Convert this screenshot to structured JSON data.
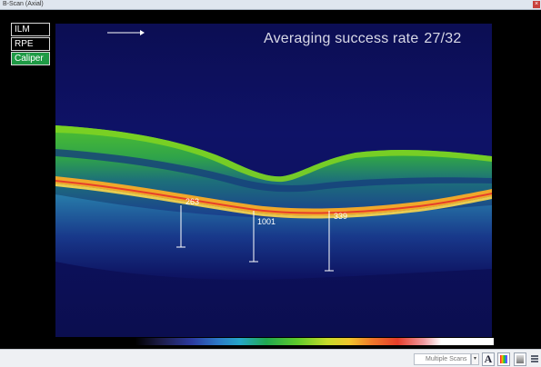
{
  "window": {
    "title": "B-Scan (Axial)"
  },
  "layers": [
    {
      "label": "ILM",
      "active": false
    },
    {
      "label": "RPE",
      "active": false
    },
    {
      "label": "Caliper",
      "active": true
    }
  ],
  "averaging": {
    "label": "Averaging success rate",
    "value": "27/32"
  },
  "calipers": [
    {
      "value": "263"
    },
    {
      "value": "1001"
    },
    {
      "value": "339"
    }
  ],
  "toolbar": {
    "scan_mode": "Multiple Scans",
    "text_tool_label": "A"
  },
  "colors": {
    "active_layer": "#1f9a45",
    "scan_background": "#0e1267"
  },
  "icons": [
    "arrow-right-icon",
    "chevron-down-icon",
    "text-icon",
    "color-palette-icon",
    "grayscale-icon",
    "grip-icon",
    "close-icon"
  ]
}
